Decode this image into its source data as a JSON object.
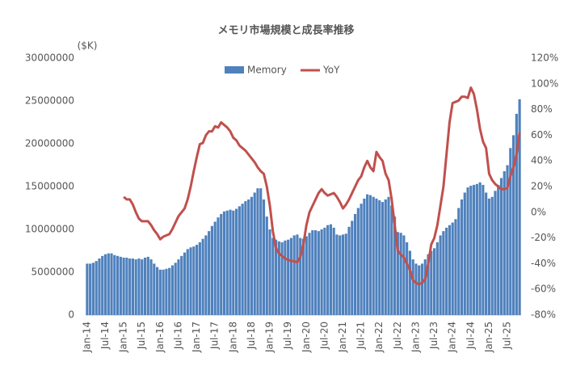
{
  "chart_data": {
    "type": "bar",
    "title": "メモリ市場規模と成長率推移",
    "y_unit": "($K)",
    "categories": [
      "Jan-14",
      null,
      null,
      null,
      null,
      null,
      "Jul-14",
      null,
      null,
      null,
      null,
      null,
      "Jan-15",
      null,
      null,
      null,
      null,
      null,
      "Jul-15",
      null,
      null,
      null,
      null,
      null,
      "Jan-16",
      null,
      null,
      null,
      null,
      null,
      "Jul-16",
      null,
      null,
      null,
      null,
      null,
      "Jan-17",
      null,
      null,
      null,
      null,
      null,
      "Jul-17",
      null,
      null,
      null,
      null,
      null,
      "Jan-18",
      null,
      null,
      null,
      null,
      null,
      "Jul-18",
      null,
      null,
      null,
      null,
      null,
      "Jan-19",
      null,
      null,
      null,
      null,
      null,
      "Jul-19",
      null,
      null,
      null,
      null,
      null,
      "Jan-20",
      null,
      null,
      null,
      null,
      null,
      "Jul-20",
      null,
      null,
      null,
      null,
      null,
      "Jan-21",
      null,
      null,
      null,
      null,
      null,
      "Jul-21",
      null,
      null,
      null,
      null,
      null,
      "Jan-22",
      null,
      null,
      null,
      null,
      null,
      "Jul-22",
      null,
      null,
      null,
      null,
      null,
      "Jan-23",
      null,
      null,
      null,
      null,
      null,
      "Jul-23",
      null,
      null,
      null,
      null,
      null,
      "Jan-24",
      null,
      null,
      null,
      null,
      null,
      "Jul-24",
      null,
      null,
      null,
      null,
      null,
      "Jan-25",
      null,
      null,
      null,
      null,
      null,
      "Jul-25",
      null,
      null,
      null,
      null
    ],
    "series": [
      {
        "name": "Memory",
        "type": "bar",
        "color": "#4f81bd",
        "values": [
          6000000,
          6000000,
          6100000,
          6300000,
          6600000,
          6900000,
          7100000,
          7200000,
          7200000,
          7000000,
          6900000,
          6800000,
          6700000,
          6700000,
          6600000,
          6600000,
          6500000,
          6600000,
          6500000,
          6700000,
          6800000,
          6500000,
          6000000,
          5600000,
          5300000,
          5300000,
          5400000,
          5500000,
          5800000,
          6100000,
          6500000,
          6900000,
          7300000,
          7700000,
          7900000,
          8000000,
          8200000,
          8500000,
          8900000,
          9300000,
          9800000,
          10400000,
          10900000,
          11400000,
          11800000,
          12100000,
          12200000,
          12300000,
          12200000,
          12400000,
          12700000,
          13000000,
          13300000,
          13500000,
          13800000,
          14300000,
          14800000,
          14800000,
          13500000,
          11500000,
          10000000,
          9000000,
          8800000,
          8600000,
          8500000,
          8700000,
          8800000,
          9000000,
          9300000,
          9400000,
          9000000,
          8900000,
          9200000,
          9600000,
          9900000,
          9900000,
          9800000,
          10000000,
          10200000,
          10500000,
          10600000,
          10200000,
          9400000,
          9300000,
          9400000,
          9500000,
          10300000,
          11000000,
          11800000,
          12500000,
          13000000,
          13600000,
          14100000,
          14000000,
          13800000,
          13600000,
          13400000,
          13200000,
          13500000,
          13800000,
          12800000,
          11500000,
          9700000,
          9600000,
          9300000,
          8500000,
          7500000,
          6500000,
          6000000,
          5800000,
          6000000,
          6500000,
          7100000,
          7500000,
          7800000,
          8500000,
          9300000,
          9800000,
          10200000,
          10500000,
          10800000,
          11200000,
          12500000,
          13500000,
          14300000,
          14900000,
          15100000,
          15200000,
          15300000,
          15500000,
          15200000,
          14300000,
          13600000,
          13800000,
          14500000,
          15200000,
          16000000,
          16800000,
          17500000,
          19500000,
          21000000,
          23500000,
          25200000
        ]
      },
      {
        "name": "YoY",
        "type": "line",
        "axis": "y2",
        "color": "#c0504d",
        "values": [
          null,
          null,
          null,
          null,
          null,
          null,
          null,
          null,
          null,
          null,
          null,
          null,
          12,
          10,
          10,
          6,
          0,
          -5,
          -7,
          -7,
          -7,
          -10,
          -14,
          -17,
          -21,
          -19,
          -18,
          -17,
          -13,
          -8,
          -3,
          0,
          3,
          10,
          20,
          32,
          43,
          53,
          54,
          60,
          63,
          63,
          67,
          66,
          70,
          68,
          66,
          63,
          58,
          56,
          52,
          50,
          48,
          45,
          42,
          39,
          35,
          32,
          30,
          20,
          5,
          -15,
          -28,
          -32,
          -34,
          -36,
          -37,
          -38,
          -38,
          -39,
          -35,
          -25,
          -10,
          0,
          5,
          10,
          15,
          18,
          15,
          13,
          14,
          15,
          12,
          8,
          3,
          6,
          10,
          15,
          20,
          25,
          28,
          35,
          40,
          35,
          32,
          47,
          43,
          40,
          30,
          25,
          10,
          -10,
          -30,
          -33,
          -35,
          -40,
          -45,
          -53,
          -55,
          -56,
          -55,
          -52,
          -40,
          -25,
          -20,
          -10,
          5,
          20,
          45,
          70,
          85,
          86,
          87,
          90,
          90,
          89,
          97,
          92,
          80,
          65,
          55,
          50,
          30,
          25,
          22,
          20,
          18,
          18,
          19,
          28,
          35,
          45,
          62
        ]
      }
    ],
    "ylim": [
      0,
      30000000
    ],
    "yticks": [
      0,
      5000000,
      10000000,
      15000000,
      20000000,
      25000000,
      30000000
    ],
    "y2lim": [
      -80,
      120
    ],
    "y2ticks": [
      {
        "value": -80,
        "label": "-80%"
      },
      {
        "value": -60,
        "label": "-60%"
      },
      {
        "value": -40,
        "label": "-40%"
      },
      {
        "value": -20,
        "label": "-20%"
      },
      {
        "value": 0,
        "label": "0%"
      },
      {
        "value": 20,
        "label": "20%"
      },
      {
        "value": 40,
        "label": "40%"
      },
      {
        "value": 60,
        "label": "60%"
      },
      {
        "value": 80,
        "label": "80%"
      },
      {
        "value": 100,
        "label": "100%"
      },
      {
        "value": 120,
        "label": "120%"
      }
    ],
    "legend": "top",
    "grid": false
  }
}
